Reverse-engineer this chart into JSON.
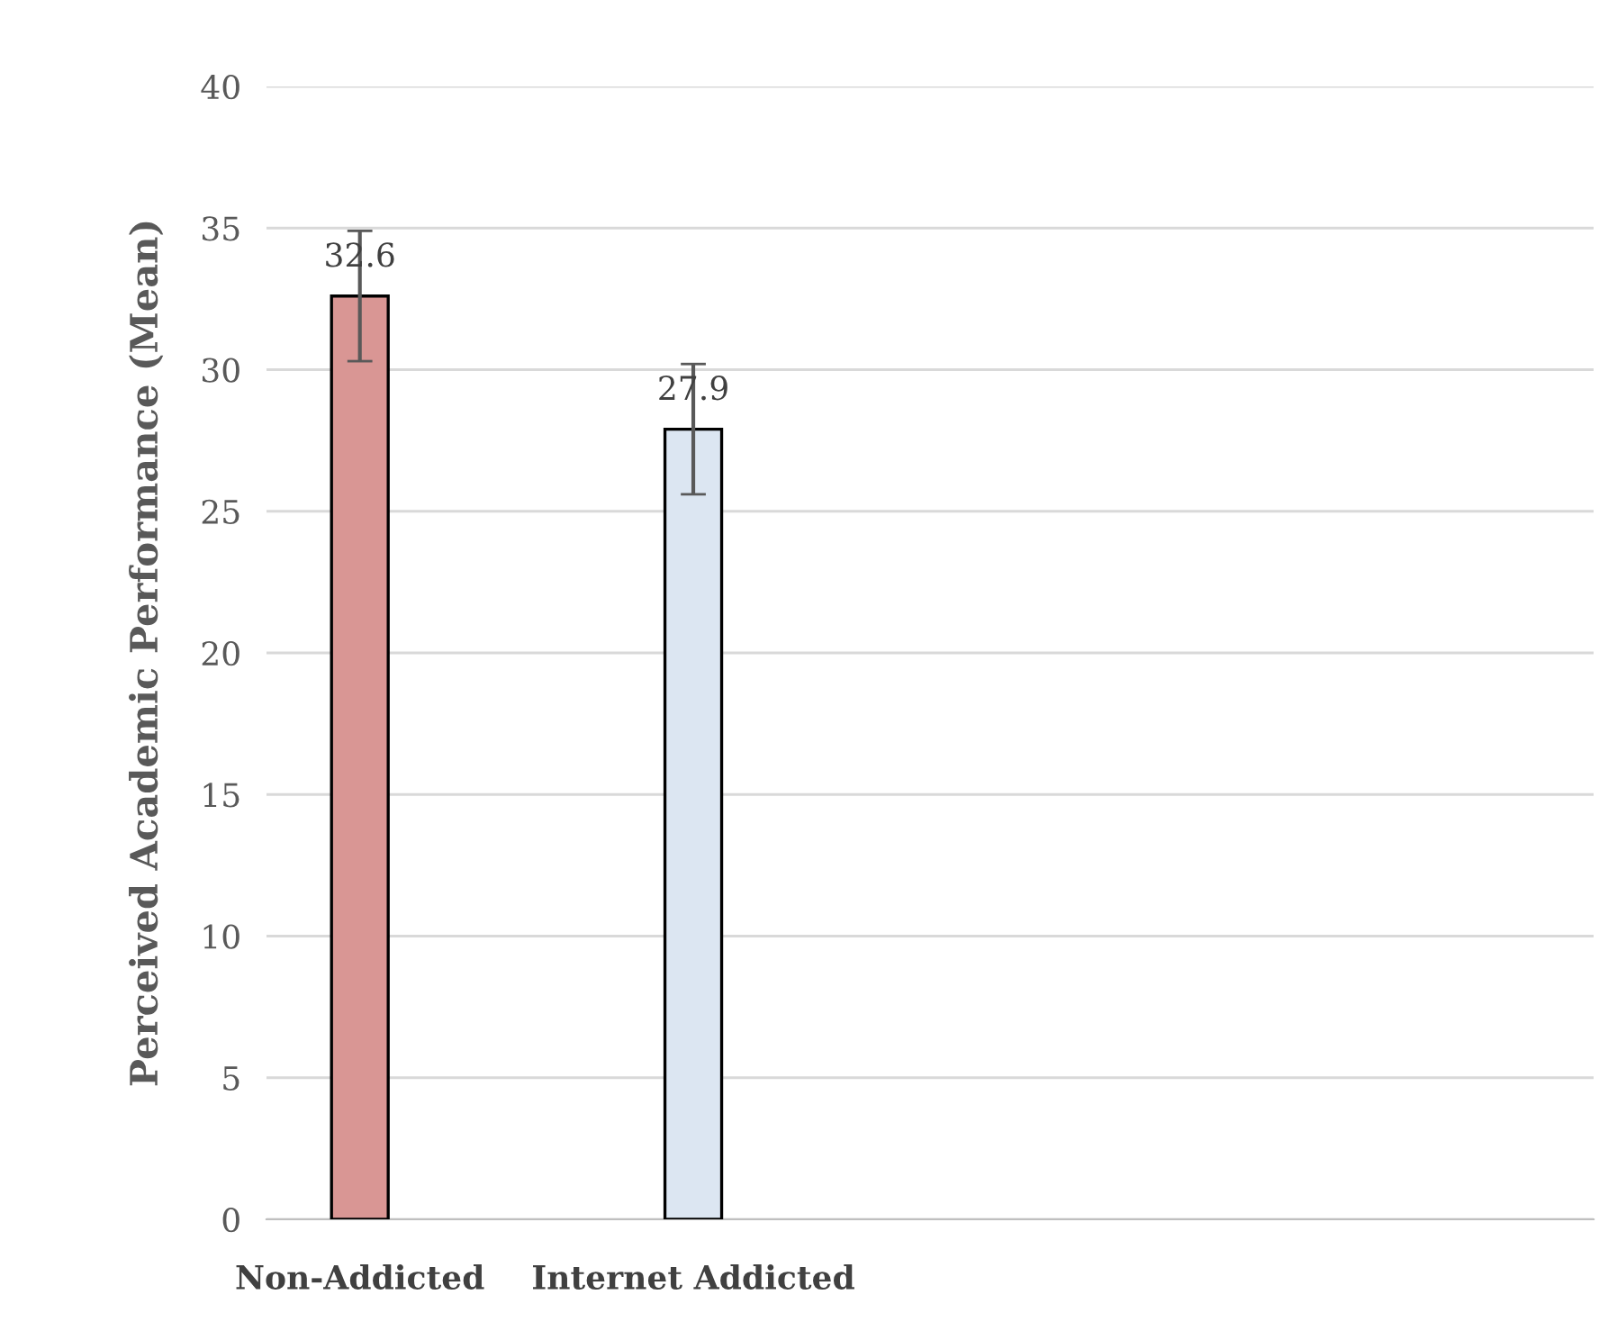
{
  "chart_data": {
    "type": "bar",
    "ylabel": "Perceived Academic Performance (Mean)",
    "categories": [
      "Non-Addicted",
      "Internet Addicted",
      null,
      null
    ],
    "values": [
      32.6,
      27.9,
      null,
      null
    ],
    "colors": [
      "#d99694",
      "#dce6f2",
      "#d99694",
      "#dce6f2"
    ],
    "errors": [
      2.3,
      2.3,
      null,
      null
    ],
    "ylim": [
      0,
      40
    ],
    "yticks": [
      0,
      5,
      10,
      15,
      20,
      25,
      30,
      35,
      40
    ],
    "grid": "y",
    "data_labels": true
  }
}
